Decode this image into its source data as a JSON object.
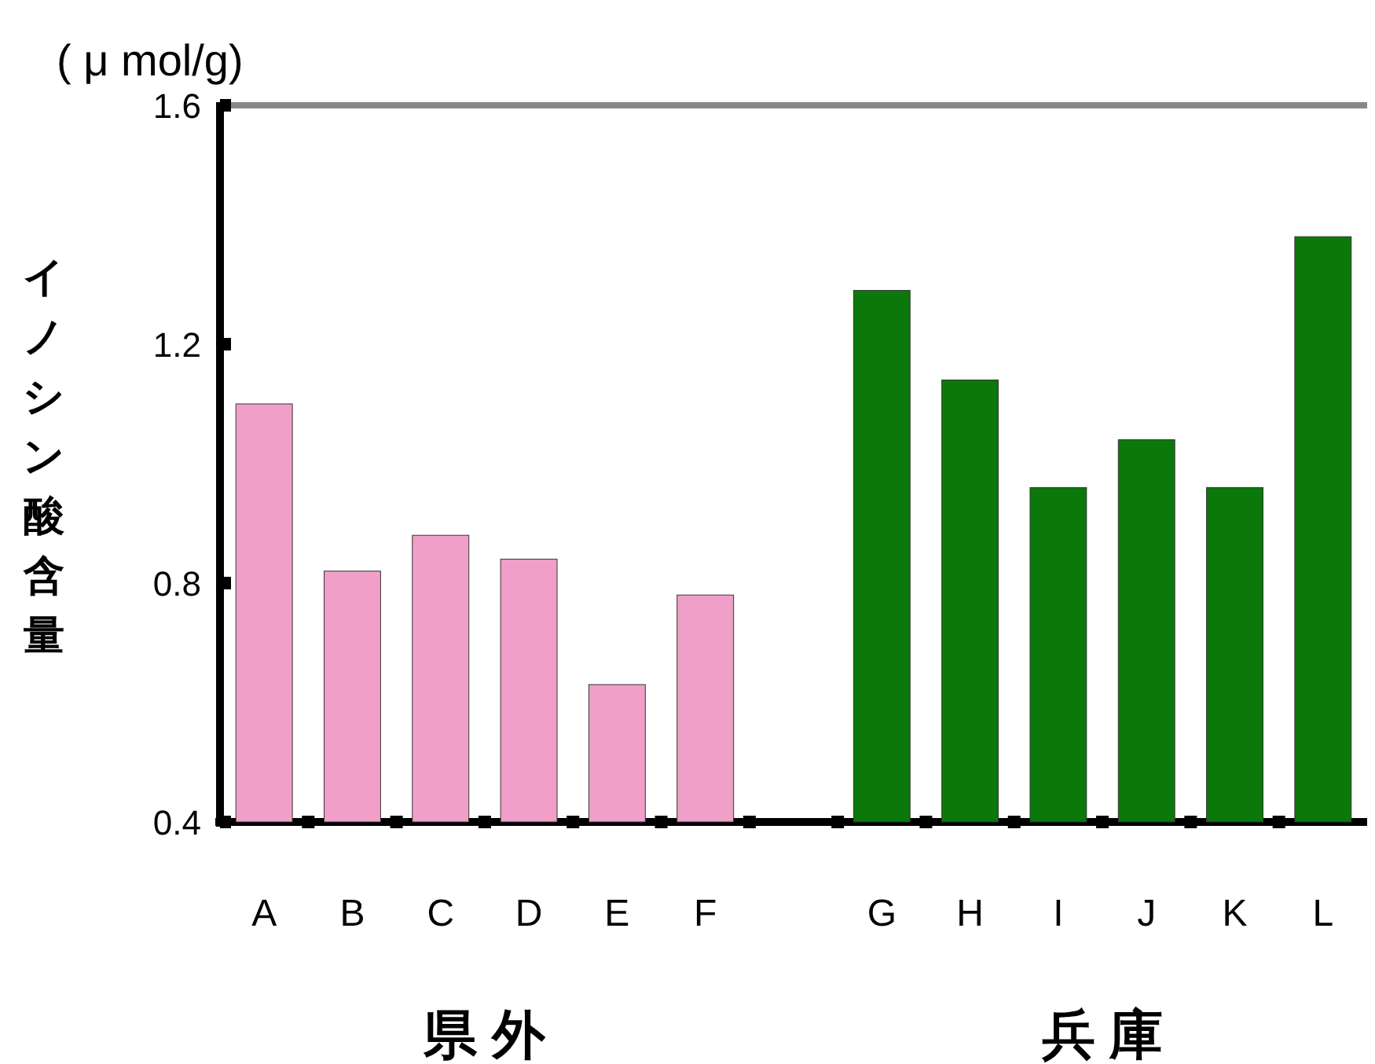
{
  "chart_data": {
    "type": "bar",
    "ylabel": "イノシン酸含量",
    "categories": [
      "A",
      "B",
      "C",
      "D",
      "E",
      "F",
      null,
      "G",
      "H",
      "I",
      "J",
      "K",
      "L"
    ],
    "values": [
      1.1,
      0.82,
      0.88,
      0.84,
      0.63,
      0.78,
      null,
      1.29,
      1.14,
      0.96,
      1.04,
      0.96,
      1.38
    ],
    "colors": [
      "#f0a0c8",
      "#f0a0c8",
      "#f0a0c8",
      "#f0a0c8",
      "#f0a0c8",
      "#f0a0c8",
      null,
      "#0a780a",
      "#0a780a",
      "#0a780a",
      "#0a780a",
      "#0a780a",
      "#0a780a"
    ],
    "ylim": [
      0.4,
      1.6
    ],
    "yticks": [
      0.4,
      0.8,
      1.2,
      1.6
    ],
    "grid": false,
    "annotations": [
      "( μ mol/g)",
      "県 外",
      "兵 庫"
    ]
  }
}
